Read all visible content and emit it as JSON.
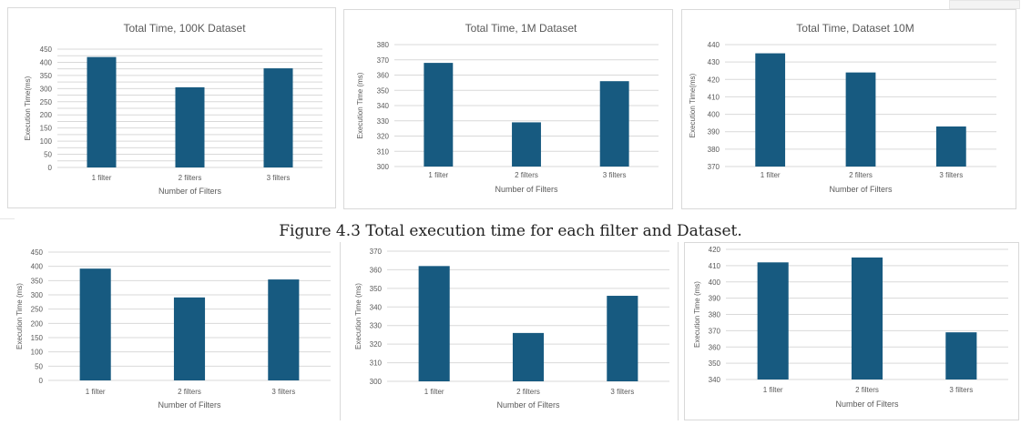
{
  "figure": {
    "caption": "Figure 4.3 Total execution time for each filter and Dataset."
  },
  "colors": {
    "bar": "#175a80",
    "grid": "#d9d9d9",
    "axis_text": "#595959",
    "title_text": "#595959"
  },
  "chart_data": [
    {
      "type": "bar",
      "title": "Total Time, 100K Dataset",
      "xlabel": "Number of Filters",
      "ylabel": "Execution Time(ms)",
      "categories": [
        "1 filter",
        "2 filters",
        "3 filters"
      ],
      "values": [
        420,
        305,
        377
      ],
      "ylim": [
        0,
        450
      ],
      "yticks": [
        0,
        25,
        50,
        75,
        100,
        125,
        150,
        175,
        200,
        225,
        250,
        275,
        300,
        325,
        350,
        375,
        400,
        425,
        450
      ],
      "ytick_labels": [
        "0",
        "",
        "",
        "",
        "",
        "",
        "",
        "",
        "",
        "",
        "",
        "",
        "",
        "",
        "",
        "",
        "",
        "",
        ""
      ],
      "grid": true
    },
    {
      "type": "bar",
      "title": "Total Time, 1M Dataset",
      "xlabel": "Number of Filters",
      "ylabel": "Execution Time (ms)",
      "categories": [
        "1 filter",
        "2 filters",
        "3 filters"
      ],
      "values": [
        368,
        329,
        356
      ],
      "ylim": [
        300,
        380
      ],
      "yticks": [
        300,
        310,
        320,
        330,
        340,
        350,
        360,
        370,
        380
      ],
      "grid": true
    },
    {
      "type": "bar",
      "title": "Total Time, Dataset 10M",
      "xlabel": "Number of Filters",
      "ylabel": "Execution Time(ms)",
      "categories": [
        "1 filter",
        "2 filters",
        "3 filters"
      ],
      "values": [
        435,
        424,
        393
      ],
      "ylim": [
        370,
        440
      ],
      "yticks": [
        370,
        380,
        390,
        400,
        410,
        420,
        430,
        440
      ],
      "grid": true
    },
    {
      "type": "bar",
      "title": "",
      "xlabel": "Number of Filters",
      "ylabel": "Execution Time (ms)",
      "categories": [
        "1 filter",
        "2 filters",
        "3 filters"
      ],
      "values": [
        392,
        291,
        354
      ],
      "ylim": [
        0,
        450
      ],
      "yticks": [
        0,
        50,
        100,
        150,
        200,
        250,
        300,
        350,
        400,
        450
      ],
      "grid": true
    },
    {
      "type": "bar",
      "title": "",
      "xlabel": "Number of Filters",
      "ylabel": "Execution Time (ms)",
      "categories": [
        "1 filter",
        "2 filters",
        "3 filters"
      ],
      "values": [
        362,
        326,
        346
      ],
      "ylim": [
        300,
        370
      ],
      "yticks": [
        300,
        310,
        320,
        330,
        340,
        350,
        360,
        370
      ],
      "grid": true
    },
    {
      "type": "bar",
      "title": "",
      "xlabel": "Number of Filters",
      "ylabel": "Execution Time (ms)",
      "categories": [
        "1 filter",
        "2 filters",
        "3 filters"
      ],
      "values": [
        412,
        415,
        369
      ],
      "ylim": [
        340,
        420
      ],
      "yticks": [
        340,
        350,
        360,
        370,
        380,
        390,
        400,
        410,
        420
      ],
      "grid": true
    }
  ]
}
